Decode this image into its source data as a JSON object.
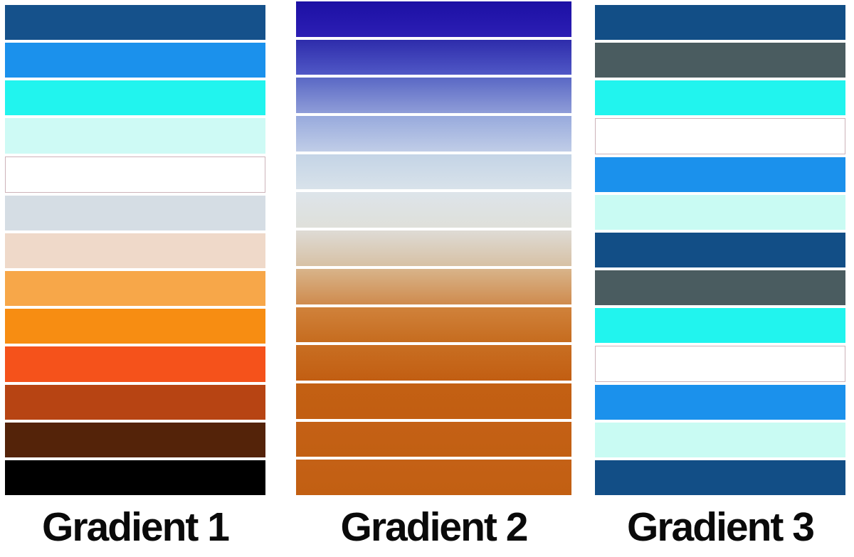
{
  "figure": {
    "background": "#ffffff",
    "label_color": "#0a0a0a",
    "white_bar_border": "#cdb3b9"
  },
  "columns": [
    {
      "label": "Gradient 1",
      "style": "solid-steps",
      "bars": [
        {
          "name": "dark-blue",
          "color": "#15518b"
        },
        {
          "name": "bright-blue",
          "color": "#1b91ec"
        },
        {
          "name": "cyan",
          "color": "#21f4ee"
        },
        {
          "name": "pale-cyan",
          "color": "#cefaf5"
        },
        {
          "name": "white",
          "color": "#ffffff",
          "border": "#cdb3b9"
        },
        {
          "name": "blue-gray",
          "color": "#d5dde4"
        },
        {
          "name": "pale-peach",
          "color": "#efd9c9"
        },
        {
          "name": "light-orange",
          "color": "#f7a749"
        },
        {
          "name": "orange",
          "color": "#f78d12"
        },
        {
          "name": "red-orange",
          "color": "#f5521b"
        },
        {
          "name": "rust",
          "color": "#b74413"
        },
        {
          "name": "dark-brown",
          "color": "#542309"
        },
        {
          "name": "black",
          "color": "#000000"
        }
      ]
    },
    {
      "label": "Gradient 2",
      "style": "vertical-gradient-steps",
      "bars": [
        {
          "name": "indigo-dark",
          "from": "#1c10a4",
          "to": "#2c1eb4"
        },
        {
          "name": "indigo",
          "from": "#2e2cab",
          "to": "#5058c6"
        },
        {
          "name": "medium-blue",
          "from": "#5a68c5",
          "to": "#8f9dd8"
        },
        {
          "name": "light-blue",
          "from": "#98aadd",
          "to": "#c0cde7"
        },
        {
          "name": "pale-blue",
          "from": "#c4d4e6",
          "to": "#d8e2ea"
        },
        {
          "name": "pale-blue-gray",
          "from": "#dde4ea",
          "to": "#dfe0da"
        },
        {
          "name": "gray-to-tan",
          "from": "#dedbd5",
          "to": "#d7c1a5"
        },
        {
          "name": "tan-to-amber",
          "from": "#d8b48a",
          "to": "#cf8b4e"
        },
        {
          "name": "amber-orange",
          "from": "#d0823b",
          "to": "#c66c1f"
        },
        {
          "name": "burnt-orange-1",
          "from": "#c86e22",
          "to": "#c25e12"
        },
        {
          "name": "burnt-orange-2",
          "from": "#c36013",
          "to": "#c25e12"
        },
        {
          "name": "burnt-orange-3",
          "from": "#c46116",
          "to": "#c25f12"
        },
        {
          "name": "burnt-orange-4",
          "from": "#c46116",
          "to": "#c25f12"
        }
      ]
    },
    {
      "label": "Gradient 3",
      "style": "repeating-steps",
      "bars": [
        {
          "name": "dark-blue",
          "color": "#124e86"
        },
        {
          "name": "slate-gray",
          "color": "#4a5c60"
        },
        {
          "name": "cyan",
          "color": "#21f4ee"
        },
        {
          "name": "white",
          "color": "#ffffff",
          "border": "#cdb3b9"
        },
        {
          "name": "bright-blue",
          "color": "#1b91ec"
        },
        {
          "name": "pale-cyan",
          "color": "#c9fbf3"
        },
        {
          "name": "dark-blue",
          "color": "#124e86"
        },
        {
          "name": "slate-gray",
          "color": "#4a5c60"
        },
        {
          "name": "cyan",
          "color": "#21f4ee"
        },
        {
          "name": "white",
          "color": "#ffffff",
          "border": "#cdb3b9"
        },
        {
          "name": "bright-blue",
          "color": "#1b91ec"
        },
        {
          "name": "pale-cyan",
          "color": "#c9fbf3"
        },
        {
          "name": "dark-blue",
          "color": "#124e86"
        }
      ]
    }
  ]
}
